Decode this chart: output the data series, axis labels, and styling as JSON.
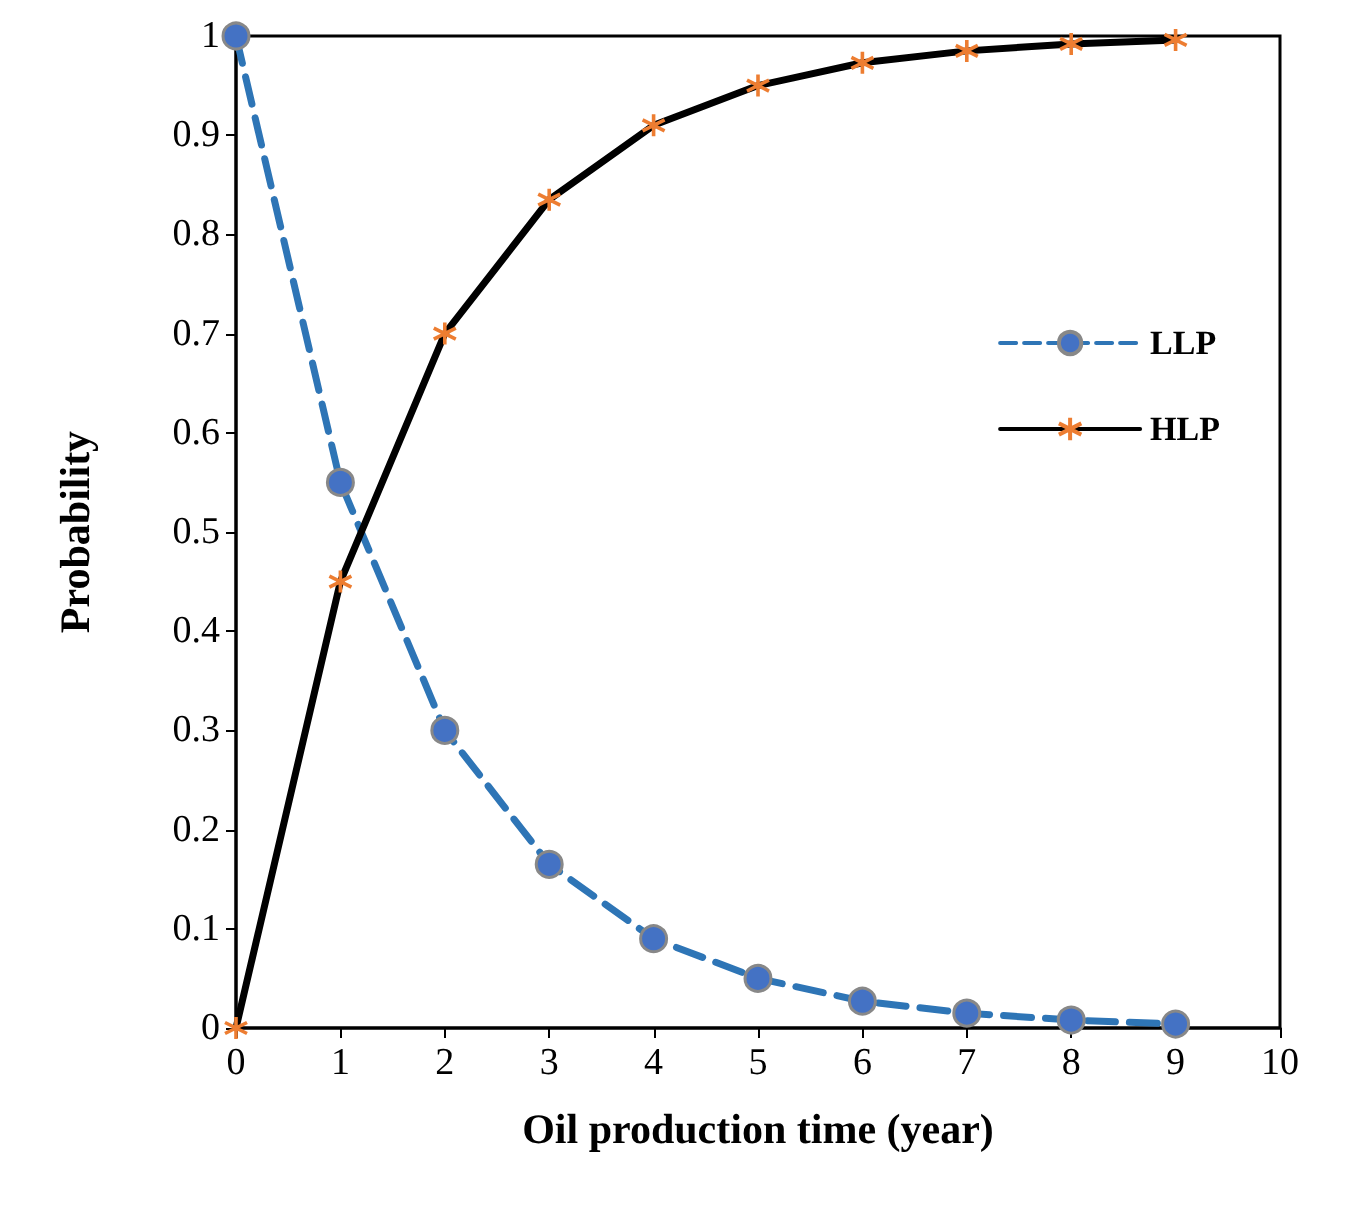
{
  "chart_data": {
    "type": "line",
    "xlabel": "Oil production time (year)",
    "ylabel": "Probability",
    "x": [
      0,
      1,
      2,
      3,
      4,
      5,
      6,
      7,
      8,
      9
    ],
    "series": [
      {
        "name": "LLP",
        "color": "#2e75b6",
        "marker": "circle",
        "line_style": "dashed",
        "values": [
          1,
          0.55,
          0.3,
          0.165,
          0.09,
          0.05,
          0.027,
          0.015,
          0.008,
          0.004
        ]
      },
      {
        "name": "HLP",
        "color": "#000000",
        "marker": "cross",
        "line_style": "solid",
        "values": [
          0,
          0.45,
          0.7,
          0.835,
          0.91,
          0.95,
          0.973,
          0.985,
          0.992,
          0.996
        ]
      }
    ],
    "xlim": [
      0,
      10
    ],
    "xticks": [
      0,
      1,
      2,
      3,
      4,
      5,
      6,
      7,
      8,
      9,
      10
    ],
    "ylim": [
      0,
      1
    ],
    "yticks": [
      0,
      0.1,
      0.2,
      0.3,
      0.4,
      0.5,
      0.6,
      0.7,
      0.8,
      0.9,
      1
    ],
    "grid": false,
    "legend": "right"
  }
}
